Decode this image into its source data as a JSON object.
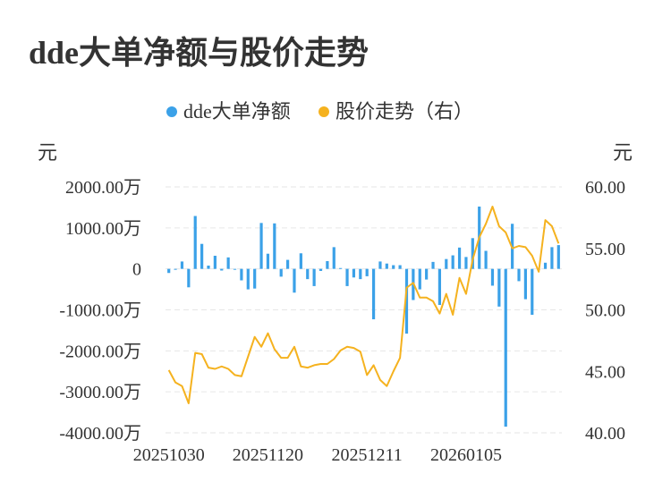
{
  "title": "dde大单净额与股价走势",
  "legend": [
    {
      "label": "dde大单净额",
      "color": "#3ba1e8"
    },
    {
      "label": "股价走势（右）",
      "color": "#f5b21f"
    }
  ],
  "left_unit": "元",
  "right_unit": "元",
  "colors": {
    "bar": "#3ba1e8",
    "line": "#f5b21f",
    "grid": "#e6e6e6"
  },
  "chart_data": {
    "type": "bar+line",
    "title": "dde大单净额与股价走势",
    "x_tick_labels": [
      "20251030",
      "20251120",
      "20251211",
      "20260105"
    ],
    "x_tick_index": [
      0,
      15,
      30,
      45
    ],
    "y_left": {
      "unit": "元",
      "range": [
        -4000,
        2000
      ],
      "ticks": [
        2000,
        1000,
        0,
        -1000,
        -2000,
        -3000,
        -4000
      ],
      "tick_labels": [
        "2000.00万",
        "1000.00万",
        "0",
        "-1000.00万",
        "-2000.00万",
        "-3000.00万",
        "-4000.00万"
      ]
    },
    "y_right": {
      "unit": "元",
      "range": [
        40,
        60
      ],
      "ticks": [
        60,
        55,
        50,
        45,
        40
      ],
      "tick_labels": [
        "60.00",
        "55.00",
        "50.00",
        "45.00",
        "40.00"
      ]
    },
    "series": [
      {
        "name": "dde大单净额",
        "type": "bar",
        "axis": "left",
        "values": [
          -100,
          -20,
          180,
          -450,
          1290,
          610,
          80,
          320,
          -40,
          280,
          -20,
          -280,
          -500,
          -480,
          1120,
          370,
          1110,
          -190,
          220,
          -580,
          380,
          -250,
          -420,
          -50,
          190,
          530,
          20,
          -420,
          -210,
          -250,
          -180,
          -1230,
          180,
          130,
          90,
          90,
          -1580,
          -760,
          -500,
          -260,
          170,
          -880,
          240,
          330,
          520,
          290,
          750,
          1520,
          440,
          -410,
          -920,
          -3850,
          1100,
          -300,
          -740,
          -1120,
          -20,
          150,
          530,
          580
        ]
      },
      {
        "name": "股价走势（右）",
        "type": "line",
        "axis": "right",
        "values": [
          45.1,
          44.1,
          43.8,
          42.4,
          46.5,
          46.4,
          45.3,
          45.2,
          45.4,
          45.2,
          44.7,
          44.6,
          46.2,
          47.8,
          47.0,
          48.1,
          46.8,
          46.1,
          46.1,
          47.0,
          45.4,
          45.3,
          45.5,
          45.6,
          45.6,
          46.0,
          46.7,
          47.0,
          46.9,
          46.6,
          44.7,
          45.5,
          44.3,
          43.8,
          45.0,
          46.1,
          51.8,
          52.2,
          51.0,
          51.0,
          50.7,
          49.7,
          51.3,
          49.6,
          52.6,
          51.3,
          54.1,
          55.9,
          57.0,
          58.4,
          56.8,
          56.3,
          55.0,
          55.2,
          55.1,
          54.4,
          53.1,
          57.3,
          56.8,
          55.4
        ]
      }
    ]
  }
}
